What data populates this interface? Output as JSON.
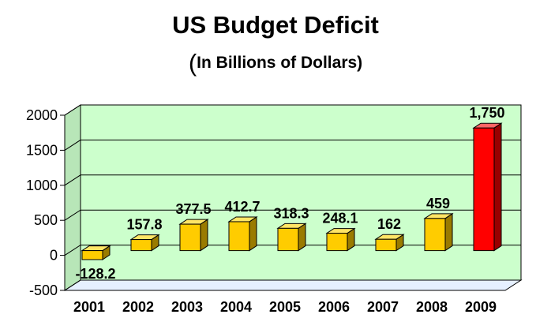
{
  "chart_data": {
    "type": "bar",
    "title": "US Budget Deficit",
    "subtitle_paren": "(",
    "subtitle_text": "In Billions of Dollars)",
    "categories": [
      "2001",
      "2002",
      "2003",
      "2004",
      "2005",
      "2006",
      "2007",
      "2008",
      "2009"
    ],
    "values": [
      -128.2,
      157.8,
      377.5,
      412.7,
      318.3,
      248.1,
      162,
      459,
      1750
    ],
    "data_labels": [
      "-128.2",
      "157.8",
      "377.5",
      "412.7",
      "318.3",
      "248.1",
      "162",
      "459",
      "1,750"
    ],
    "ylim": [
      -500,
      2000
    ],
    "yticks": [
      -500,
      0,
      500,
      1000,
      1500,
      2000
    ],
    "ytick_labels": [
      "-500",
      "0",
      "500",
      "1000",
      "1500",
      "2000"
    ],
    "xlabel": "",
    "ylabel": "",
    "grid": true,
    "colors": {
      "bar": "#ffcc00",
      "bar_side": "#9a7b00",
      "bar_top": "#ffe566",
      "highlight": "#ff0000",
      "highlight_side": "#990000",
      "highlight_top": "#ff6666",
      "wall": "#ccffcc",
      "floor": "#e6f0ff",
      "axis": "#000000"
    },
    "highlight_index": 8
  }
}
